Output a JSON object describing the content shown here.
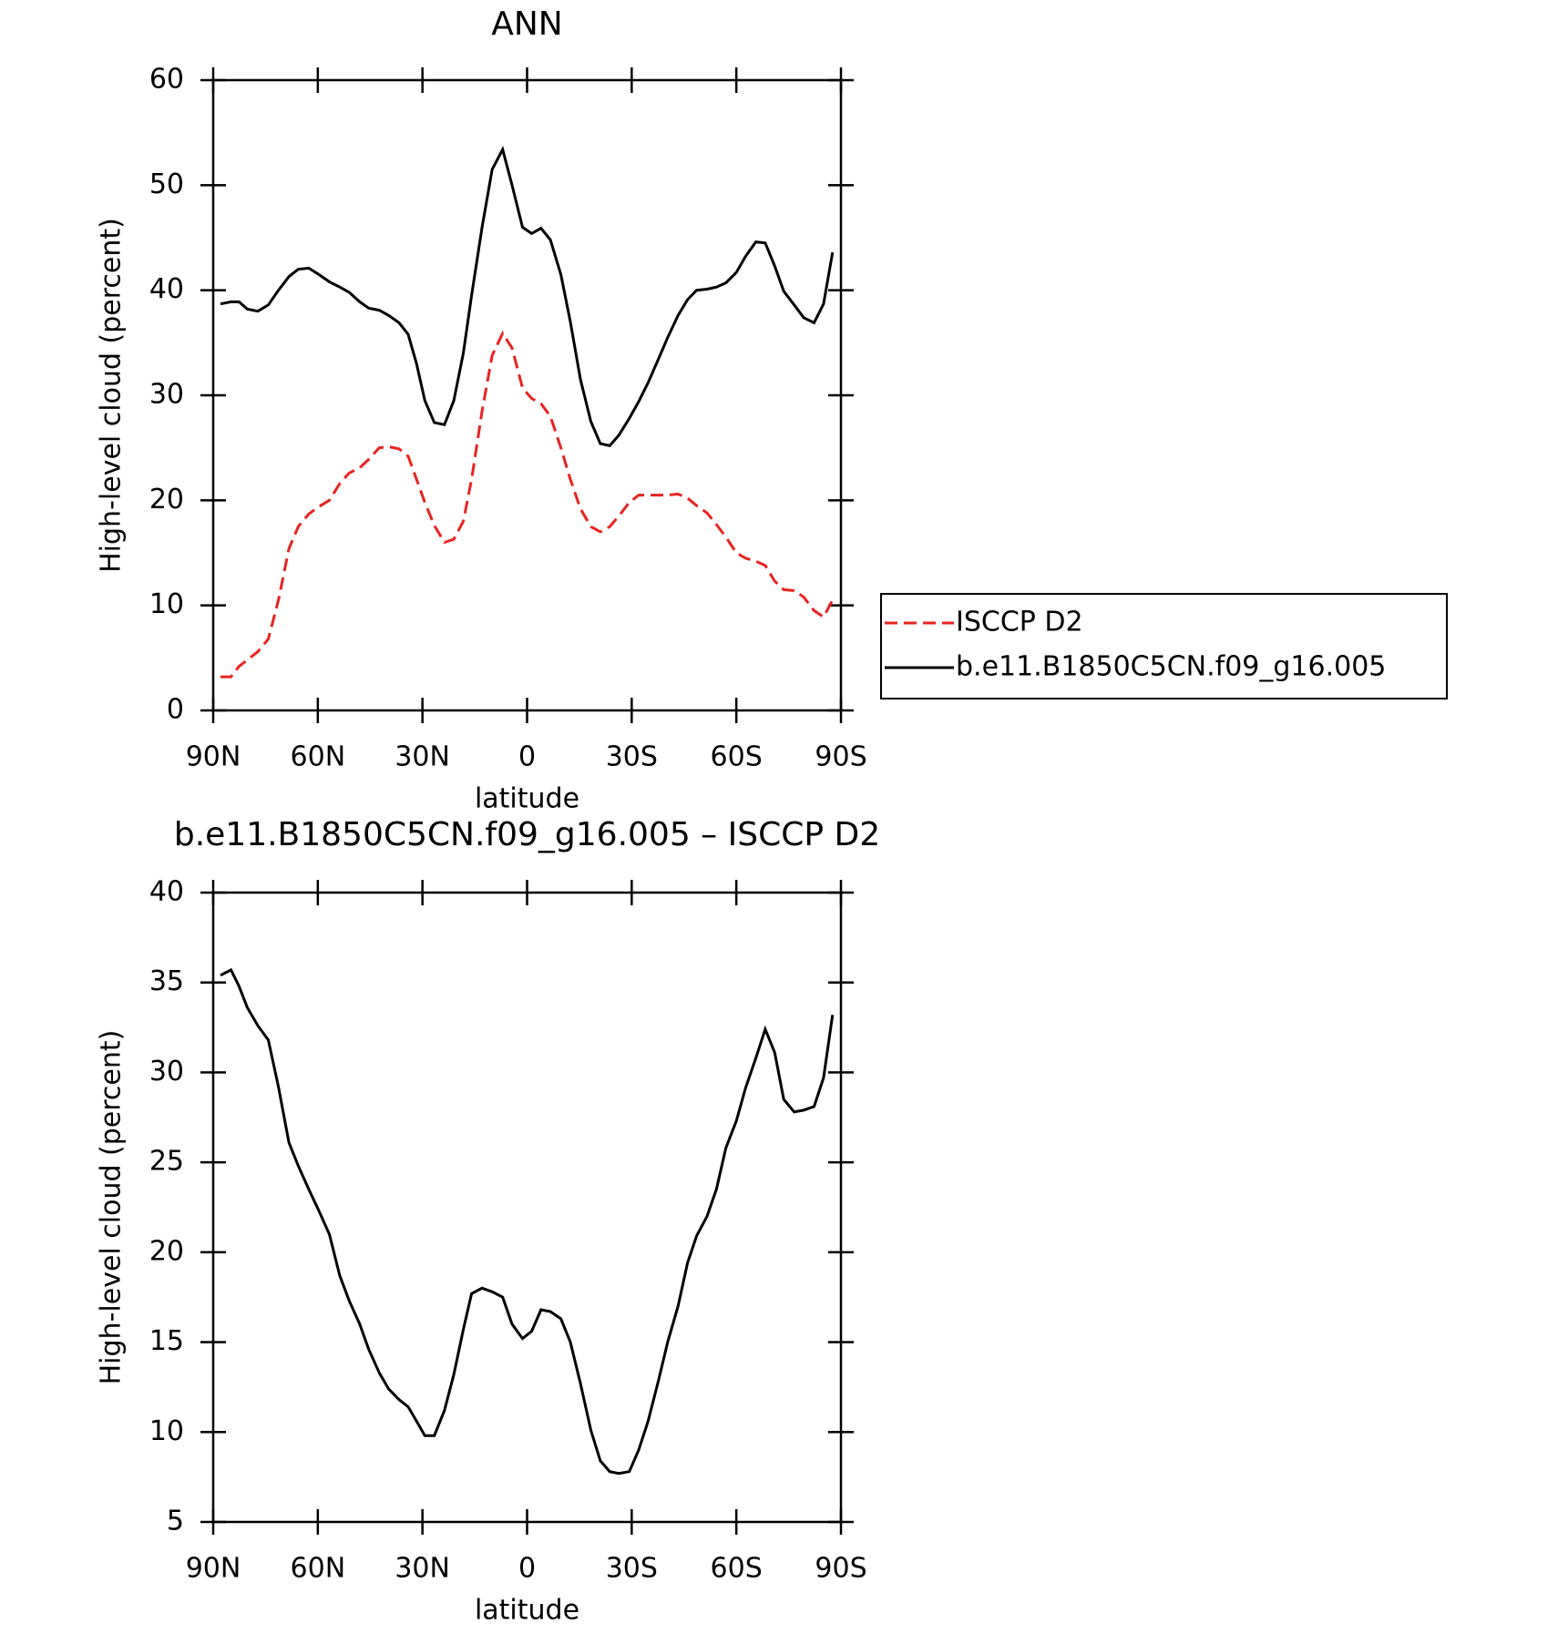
{
  "chart_data": [
    {
      "type": "line",
      "title": "ANN",
      "x_label": "latitude",
      "y_label": "High-level cloud (percent)",
      "xlim": [
        90,
        -90
      ],
      "ylim": [
        0,
        60
      ],
      "xticks": [
        {
          "value": 90,
          "label": "90N"
        },
        {
          "value": 60,
          "label": "60N"
        },
        {
          "value": 30,
          "label": "30N"
        },
        0,
        {
          "value": -30,
          "label": "30S"
        },
        {
          "value": -60,
          "label": "60S"
        },
        {
          "value": -90,
          "label": "90S"
        }
      ],
      "yticks": [
        0,
        10,
        20,
        30,
        40,
        50,
        60
      ],
      "legend": "right",
      "x": [
        87.9,
        84.9,
        82.6,
        80.2,
        77.2,
        74.2,
        71.3,
        68.3,
        65.6,
        62.6,
        59.7,
        56.7,
        53.7,
        51.0,
        48.0,
        45.4,
        42.4,
        39.7,
        36.7,
        34.1,
        31.7,
        29.3,
        26.6,
        23.7,
        21.0,
        18.3,
        15.9,
        12.9,
        10.0,
        7.0,
        4.3,
        1.3,
        -1.3,
        -4.0,
        -6.7,
        -9.7,
        -12.4,
        -15.3,
        -18.3,
        -21.0,
        -23.7,
        -26.3,
        -29.3,
        -32.0,
        -34.7,
        -37.6,
        -40.3,
        -43.3,
        -46.0,
        -48.6,
        -51.6,
        -54.3,
        -57.0,
        -60.0,
        -62.6,
        -65.6,
        -68.3,
        -71.0,
        -73.6,
        -76.6,
        -79.3,
        -82.3,
        -85.0,
        -87.6
      ],
      "series": [
        {
          "name": "ISCCP D2",
          "color": "#e8231f",
          "dash": true,
          "values": [
            3.2,
            3.2,
            4.2,
            4.8,
            5.6,
            6.8,
            10.5,
            15.4,
            17.5,
            18.7,
            19.4,
            20.0,
            21.6,
            22.6,
            23.1,
            23.9,
            25.0,
            25.1,
            24.9,
            24.2,
            22.0,
            19.8,
            17.6,
            16.0,
            16.3,
            18.0,
            22.0,
            28.5,
            33.8,
            35.9,
            34.5,
            30.7,
            29.7,
            29.2,
            28.0,
            25.0,
            22.0,
            19.2,
            17.5,
            17.0,
            17.5,
            18.5,
            19.8,
            20.5,
            20.5,
            20.5,
            20.5,
            20.6,
            20.2,
            19.5,
            18.8,
            17.7,
            16.5,
            15.0,
            14.5,
            14.2,
            13.8,
            12.3,
            11.5,
            11.4,
            10.8,
            9.5,
            8.9,
            10.5
          ]
        },
        {
          "name": "b.e11.B1850C5CN.f09_g16.005",
          "color": "#000000",
          "dash": false,
          "values": [
            38.7,
            38.9,
            38.9,
            38.2,
            38.0,
            38.6,
            40.0,
            41.3,
            42.0,
            42.1,
            41.5,
            40.8,
            40.3,
            39.8,
            38.9,
            38.3,
            38.1,
            37.6,
            36.9,
            35.8,
            33.0,
            29.5,
            27.4,
            27.2,
            29.5,
            34.0,
            39.5,
            46.0,
            51.5,
            53.4,
            50.0,
            46.0,
            45.4,
            45.9,
            44.8,
            41.5,
            37.0,
            31.5,
            27.5,
            25.4,
            25.2,
            26.2,
            27.8,
            29.4,
            31.2,
            33.4,
            35.5,
            37.6,
            39.1,
            40.0,
            40.1,
            40.3,
            40.7,
            41.7,
            43.2,
            44.6,
            44.5,
            42.3,
            39.9,
            38.6,
            37.4,
            36.9,
            38.7,
            43.6
          ]
        }
      ]
    },
    {
      "type": "line",
      "title": "b.e11.B1850C5CN.f09_g16.005 – ISCCP D2",
      "x_label": "latitude",
      "y_label": "High-level cloud (percent)",
      "xlim": [
        90,
        -90
      ],
      "ylim": [
        5,
        40
      ],
      "xticks": [
        {
          "value": 90,
          "label": "90N"
        },
        {
          "value": 60,
          "label": "60N"
        },
        {
          "value": 30,
          "label": "30N"
        },
        0,
        {
          "value": -30,
          "label": "30S"
        },
        {
          "value": -60,
          "label": "60S"
        },
        {
          "value": -90,
          "label": "90S"
        }
      ],
      "yticks": [
        5,
        10,
        15,
        20,
        25,
        30,
        35,
        40
      ],
      "x": [
        87.9,
        84.9,
        82.6,
        80.2,
        77.2,
        74.2,
        71.3,
        68.3,
        65.6,
        62.6,
        59.7,
        56.7,
        53.7,
        51.0,
        48.0,
        45.4,
        42.4,
        39.7,
        36.7,
        34.1,
        31.7,
        29.3,
        26.6,
        23.7,
        21.0,
        18.3,
        15.9,
        12.9,
        10.0,
        7.0,
        4.3,
        1.3,
        -1.3,
        -4.0,
        -6.7,
        -9.7,
        -12.4,
        -15.3,
        -18.3,
        -21.0,
        -23.7,
        -26.3,
        -29.3,
        -32.0,
        -34.7,
        -37.6,
        -40.3,
        -43.3,
        -46.0,
        -48.6,
        -51.6,
        -54.3,
        -57.0,
        -60.0,
        -62.6,
        -65.6,
        -68.3,
        -71.0,
        -73.6,
        -76.6,
        -79.3,
        -82.3,
        -85.0,
        -87.6
      ],
      "series": [
        {
          "color": "#000000",
          "dash": false,
          "values": [
            35.4,
            35.7,
            34.8,
            33.6,
            32.6,
            31.8,
            29.2,
            26.1,
            24.8,
            23.5,
            22.3,
            21.0,
            18.7,
            17.3,
            16.0,
            14.6,
            13.3,
            12.4,
            11.8,
            11.4,
            10.6,
            9.8,
            9.8,
            11.2,
            13.2,
            15.7,
            17.7,
            18.0,
            17.8,
            17.5,
            16.0,
            15.2,
            15.6,
            16.8,
            16.7,
            16.3,
            15.0,
            12.7,
            10.1,
            8.4,
            7.8,
            7.7,
            7.8,
            9.0,
            10.6,
            12.8,
            15.0,
            17.0,
            19.4,
            20.9,
            22.0,
            23.5,
            25.8,
            27.3,
            29.1,
            30.8,
            32.4,
            31.1,
            28.5,
            27.8,
            27.9,
            28.1,
            29.7,
            33.2
          ]
        }
      ]
    }
  ]
}
